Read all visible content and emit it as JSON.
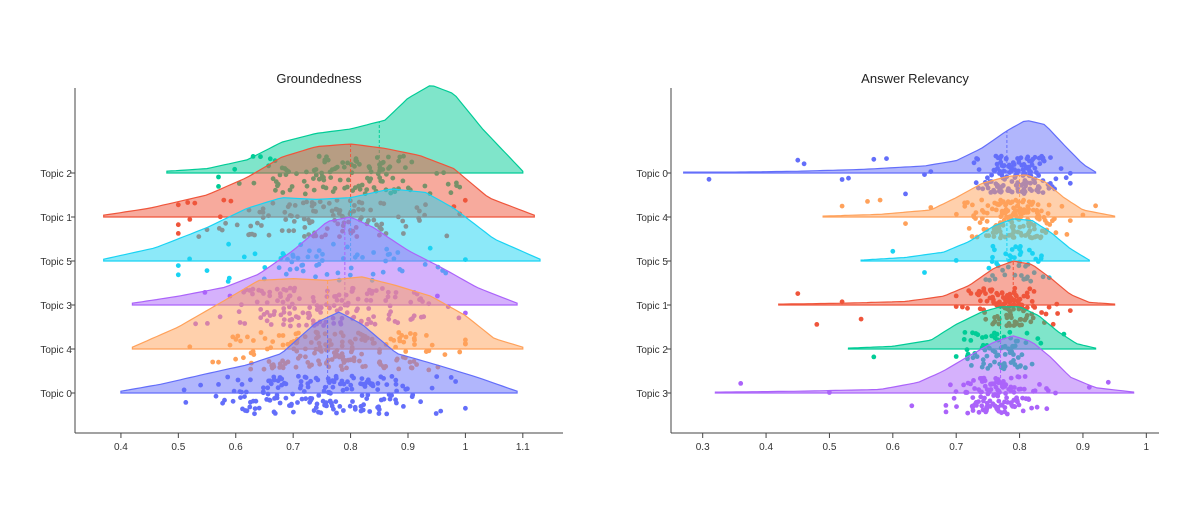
{
  "colors": {
    "Topic 0": "#636efa",
    "Topic 1": "#ef553b",
    "Topic 2": "#00cc96",
    "Topic 3": "#ab63fa",
    "Topic 4": "#ffa15a",
    "Topic 5": "#19d3f3"
  },
  "chart_data": [
    {
      "type": "violin",
      "title": "Groundedness",
      "xlim": [
        0.32,
        1.17
      ],
      "xticks": [
        0.4,
        0.5,
        0.6,
        0.7,
        0.8,
        0.9,
        1,
        1.1
      ],
      "xtick_labels": [
        "0.4",
        "0.5",
        "0.6",
        "0.7",
        "0.8",
        "0.9",
        "1",
        "1.1"
      ],
      "categories": [
        "Topic 0",
        "Topic 4",
        "Topic 3",
        "Topic 5",
        "Topic 1",
        "Topic 2"
      ],
      "series": [
        {
          "name": "Topic 0",
          "range": [
            0.4,
            1.09
          ],
          "mean": 0.76,
          "kde": [
            [
              0.4,
              0.02
            ],
            [
              0.47,
              0.1
            ],
            [
              0.55,
              0.22
            ],
            [
              0.62,
              0.32
            ],
            [
              0.68,
              0.45
            ],
            [
              0.74,
              0.8
            ],
            [
              0.78,
              0.92
            ],
            [
              0.82,
              0.78
            ],
            [
              0.88,
              0.45
            ],
            [
              0.95,
              0.32
            ],
            [
              1.02,
              0.18
            ],
            [
              1.09,
              0.02
            ]
          ],
          "pts_range": [
            0.5,
            1.0
          ],
          "n": 170,
          "points": [
            0.57,
            0.61,
            0.95,
            0.51,
            0.68,
            1.0,
            0.74,
            0.77,
            0.83
          ]
        },
        {
          "name": "Topic 4",
          "range": [
            0.42,
            1.1
          ],
          "mean": 0.76,
          "kde": [
            [
              0.42,
              0.02
            ],
            [
              0.5,
              0.25
            ],
            [
              0.58,
              0.55
            ],
            [
              0.64,
              0.78
            ],
            [
              0.7,
              0.8
            ],
            [
              0.76,
              0.78
            ],
            [
              0.82,
              0.82
            ],
            [
              0.88,
              0.72
            ],
            [
              0.94,
              0.6
            ],
            [
              1.0,
              0.38
            ],
            [
              1.05,
              0.12
            ],
            [
              1.1,
              0.02
            ]
          ],
          "pts_range": [
            0.51,
            1.0
          ],
          "n": 170,
          "points": [
            0.52,
            0.57,
            0.63,
            0.99,
            1.0,
            0.87
          ]
        },
        {
          "name": "Topic 3",
          "range": [
            0.42,
            1.09
          ],
          "mean": 0.79,
          "kde": [
            [
              0.42,
              0.02
            ],
            [
              0.5,
              0.1
            ],
            [
              0.58,
              0.2
            ],
            [
              0.64,
              0.35
            ],
            [
              0.7,
              0.62
            ],
            [
              0.76,
              0.95
            ],
            [
              0.8,
              1.0
            ],
            [
              0.84,
              0.88
            ],
            [
              0.9,
              0.62
            ],
            [
              0.96,
              0.42
            ],
            [
              1.02,
              0.2
            ],
            [
              1.09,
              0.02
            ]
          ],
          "pts_range": [
            0.52,
            1.0
          ],
          "n": 150,
          "points": [
            0.53,
            0.59,
            0.97,
            1.0
          ]
        },
        {
          "name": "Topic 5",
          "range": [
            0.37,
            1.13
          ],
          "mean": 0.8,
          "kde": [
            [
              0.37,
              0.02
            ],
            [
              0.46,
              0.15
            ],
            [
              0.55,
              0.38
            ],
            [
              0.62,
              0.6
            ],
            [
              0.68,
              0.72
            ],
            [
              0.74,
              0.7
            ],
            [
              0.8,
              0.72
            ],
            [
              0.87,
              0.82
            ],
            [
              0.93,
              0.78
            ],
            [
              0.98,
              0.6
            ],
            [
              1.05,
              0.25
            ],
            [
              1.13,
              0.02
            ]
          ],
          "pts_range": [
            0.5,
            1.0
          ],
          "n": 60,
          "points": [
            0.5,
            0.55,
            0.89,
            0.93,
            1.0
          ]
        },
        {
          "name": "Topic 1",
          "range": [
            0.37,
            1.12
          ],
          "mean": 0.8,
          "kde": [
            [
              0.37,
              0.02
            ],
            [
              0.45,
              0.1
            ],
            [
              0.55,
              0.25
            ],
            [
              0.62,
              0.45
            ],
            [
              0.68,
              0.68
            ],
            [
              0.74,
              0.8
            ],
            [
              0.8,
              0.83
            ],
            [
              0.86,
              0.78
            ],
            [
              0.92,
              0.7
            ],
            [
              0.98,
              0.55
            ],
            [
              1.04,
              0.22
            ],
            [
              1.12,
              0.02
            ]
          ],
          "pts_range": [
            0.5,
            1.0
          ],
          "n": 120,
          "points": [
            0.5,
            0.52,
            0.55,
            0.99,
            0.98
          ]
        },
        {
          "name": "Topic 2",
          "range": [
            0.48,
            1.1
          ],
          "mean": 0.85,
          "kde": [
            [
              0.48,
              0.02
            ],
            [
              0.55,
              0.05
            ],
            [
              0.62,
              0.15
            ],
            [
              0.68,
              0.35
            ],
            [
              0.74,
              0.45
            ],
            [
              0.8,
              0.5
            ],
            [
              0.86,
              0.6
            ],
            [
              0.9,
              0.85
            ],
            [
              0.94,
              1.0
            ],
            [
              0.98,
              0.9
            ],
            [
              1.03,
              0.5
            ],
            [
              1.1,
              0.02
            ]
          ],
          "pts_range": [
            0.57,
            1.0
          ],
          "n": 120,
          "points": [
            0.57,
            0.99,
            0.95,
            0.97
          ]
        }
      ]
    },
    {
      "type": "violin",
      "title": "Answer Relevancy",
      "xlim": [
        0.25,
        1.02
      ],
      "xticks": [
        0.3,
        0.4,
        0.5,
        0.6,
        0.7,
        0.8,
        0.9,
        1
      ],
      "xtick_labels": [
        "0.3",
        "0.4",
        "0.5",
        "0.6",
        "0.7",
        "0.8",
        "0.9",
        "1"
      ],
      "categories": [
        "Topic 3",
        "Topic 2",
        "Topic 1",
        "Topic 5",
        "Topic 4",
        "Topic 0"
      ],
      "series": [
        {
          "name": "Topic 3",
          "range": [
            0.32,
            0.98
          ],
          "mean": 0.77,
          "kde": [
            [
              0.32,
              0.01
            ],
            [
              0.45,
              0.02
            ],
            [
              0.58,
              0.04
            ],
            [
              0.64,
              0.12
            ],
            [
              0.68,
              0.25
            ],
            [
              0.72,
              0.42
            ],
            [
              0.76,
              0.58
            ],
            [
              0.79,
              0.65
            ],
            [
              0.82,
              0.58
            ],
            [
              0.85,
              0.4
            ],
            [
              0.88,
              0.18
            ],
            [
              0.92,
              0.06
            ],
            [
              0.98,
              0.01
            ]
          ],
          "pts_range": [
            0.68,
            0.86
          ],
          "n": 130,
          "points": [
            0.36,
            0.5,
            0.63,
            0.91,
            0.94
          ]
        },
        {
          "name": "Topic 2",
          "range": [
            0.53,
            0.92
          ],
          "mean": 0.77,
          "kde": [
            [
              0.53,
              0.01
            ],
            [
              0.6,
              0.03
            ],
            [
              0.66,
              0.1
            ],
            [
              0.7,
              0.28
            ],
            [
              0.74,
              0.42
            ],
            [
              0.77,
              0.48
            ],
            [
              0.8,
              0.48
            ],
            [
              0.83,
              0.38
            ],
            [
              0.86,
              0.2
            ],
            [
              0.89,
              0.06
            ],
            [
              0.92,
              0.01
            ]
          ],
          "pts_range": [
            0.7,
            0.84
          ],
          "n": 75,
          "points": [
            0.57,
            0.87
          ]
        },
        {
          "name": "Topic 1",
          "range": [
            0.42,
            0.95
          ],
          "mean": 0.79,
          "kde": [
            [
              0.42,
              0.01
            ],
            [
              0.52,
              0.02
            ],
            [
              0.62,
              0.04
            ],
            [
              0.68,
              0.1
            ],
            [
              0.72,
              0.22
            ],
            [
              0.76,
              0.42
            ],
            [
              0.79,
              0.5
            ],
            [
              0.82,
              0.46
            ],
            [
              0.85,
              0.3
            ],
            [
              0.88,
              0.12
            ],
            [
              0.91,
              0.03
            ],
            [
              0.95,
              0.01
            ]
          ],
          "pts_range": [
            0.7,
            0.86
          ],
          "n": 120,
          "points": [
            0.45,
            0.48,
            0.52,
            0.55,
            0.88
          ]
        },
        {
          "name": "Topic 5",
          "range": [
            0.55,
            0.91
          ],
          "mean": 0.78,
          "kde": [
            [
              0.55,
              0.01
            ],
            [
              0.62,
              0.04
            ],
            [
              0.68,
              0.1
            ],
            [
              0.72,
              0.22
            ],
            [
              0.76,
              0.4
            ],
            [
              0.79,
              0.48
            ],
            [
              0.82,
              0.46
            ],
            [
              0.85,
              0.32
            ],
            [
              0.88,
              0.14
            ],
            [
              0.91,
              0.01
            ]
          ],
          "pts_range": [
            0.74,
            0.86
          ],
          "n": 45,
          "points": [
            0.6,
            0.65,
            0.7
          ]
        },
        {
          "name": "Topic 4",
          "range": [
            0.49,
            0.95
          ],
          "mean": 0.8,
          "kde": [
            [
              0.49,
              0.01
            ],
            [
              0.58,
              0.03
            ],
            [
              0.66,
              0.08
            ],
            [
              0.7,
              0.22
            ],
            [
              0.74,
              0.38
            ],
            [
              0.78,
              0.46
            ],
            [
              0.81,
              0.48
            ],
            [
              0.84,
              0.4
            ],
            [
              0.87,
              0.22
            ],
            [
              0.9,
              0.08
            ],
            [
              0.95,
              0.01
            ]
          ],
          "pts_range": [
            0.7,
            0.88
          ],
          "n": 160,
          "points": [
            0.52,
            0.56,
            0.58,
            0.62,
            0.66,
            0.9,
            0.92
          ]
        },
        {
          "name": "Topic 0",
          "range": [
            0.27,
            0.92
          ],
          "mean": 0.78,
          "kde": [
            [
              0.27,
              0.01
            ],
            [
              0.35,
              0.01
            ],
            [
              0.45,
              0.02
            ],
            [
              0.55,
              0.04
            ],
            [
              0.65,
              0.08
            ],
            [
              0.7,
              0.14
            ],
            [
              0.74,
              0.28
            ],
            [
              0.78,
              0.48
            ],
            [
              0.81,
              0.6
            ],
            [
              0.84,
              0.55
            ],
            [
              0.87,
              0.32
            ],
            [
              0.9,
              0.1
            ],
            [
              0.92,
              0.01
            ]
          ],
          "pts_range": [
            0.72,
            0.88
          ],
          "n": 140,
          "points": [
            0.31,
            0.45,
            0.46,
            0.52,
            0.53,
            0.57,
            0.59,
            0.62,
            0.65,
            0.66
          ]
        }
      ]
    }
  ]
}
